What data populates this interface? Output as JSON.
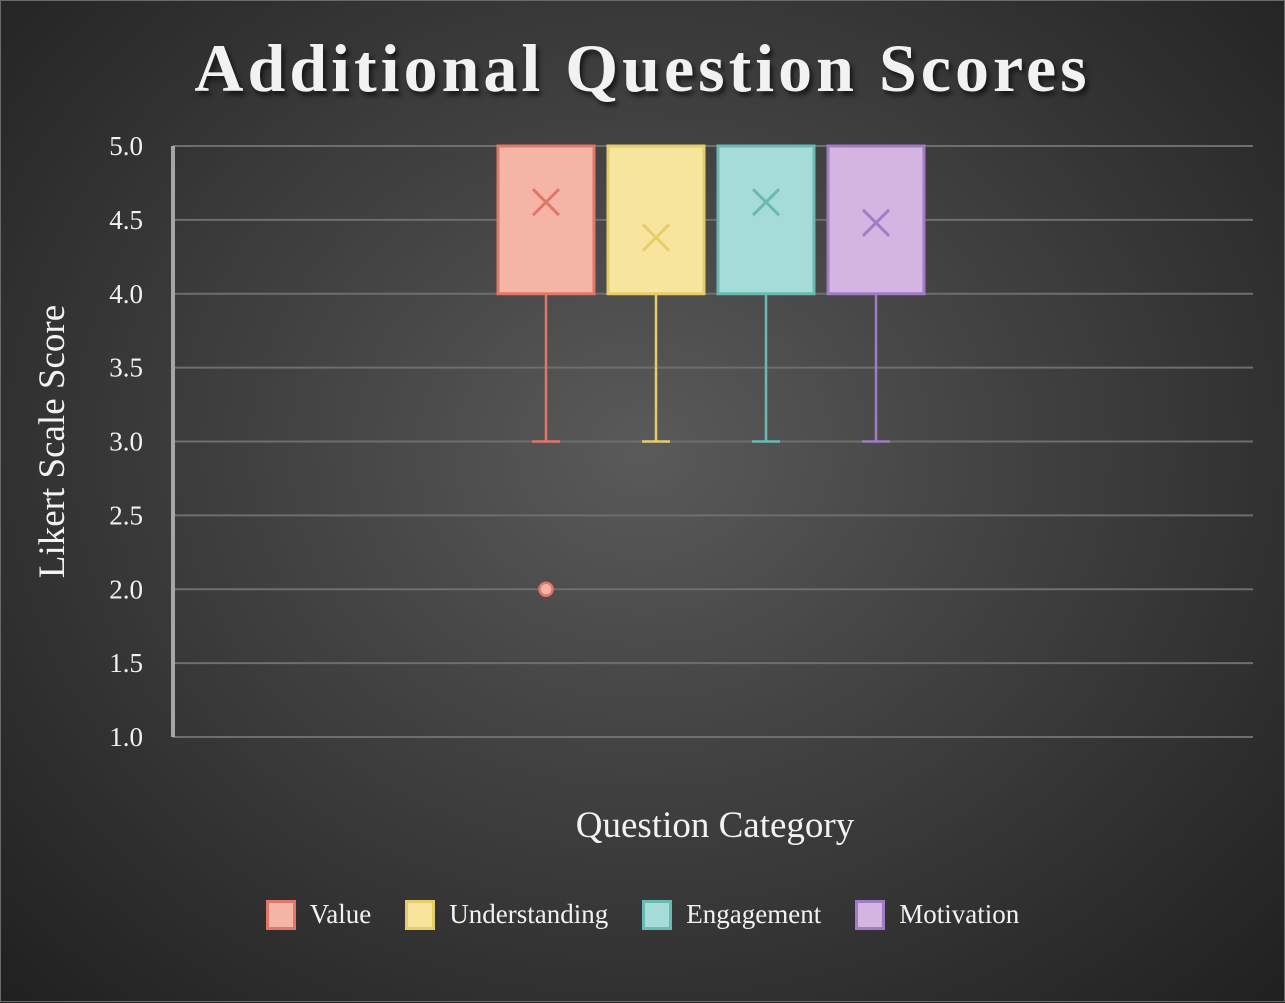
{
  "chart_data": {
    "type": "boxplot",
    "title": "Additional Question Scores",
    "xlabel": "Question Category",
    "ylabel": "Likert Scale Score",
    "ylim": [
      1.0,
      5.0
    ],
    "y_ticks": [
      "1.0",
      "1.5",
      "2.0",
      "2.5",
      "3.0",
      "3.5",
      "4.0",
      "4.5",
      "5.0"
    ],
    "y_tick_values": [
      1.0,
      1.5,
      2.0,
      2.5,
      3.0,
      3.5,
      4.0,
      4.5,
      5.0
    ],
    "grid": true,
    "legend_position": "bottom",
    "series": [
      {
        "name": "Value",
        "min": 3.0,
        "q1": 4.0,
        "median": 5.0,
        "q3": 5.0,
        "max": 5.0,
        "mean": 4.62,
        "outliers": [
          2.0
        ],
        "fill": "#f4b5a6",
        "stroke": "#e0776a"
      },
      {
        "name": "Understanding",
        "min": 3.0,
        "q1": 4.0,
        "median": 5.0,
        "q3": 5.0,
        "max": 5.0,
        "mean": 4.38,
        "outliers": [],
        "fill": "#f8e59d",
        "stroke": "#e6cd6a"
      },
      {
        "name": "Engagement",
        "min": 3.0,
        "q1": 4.0,
        "median": 5.0,
        "q3": 5.0,
        "max": 5.0,
        "mean": 4.62,
        "outliers": [],
        "fill": "#a6dcd7",
        "stroke": "#6ab9b3"
      },
      {
        "name": "Motivation",
        "min": 3.0,
        "q1": 4.0,
        "median": 5.0,
        "q3": 5.0,
        "max": 5.0,
        "mean": 4.48,
        "outliers": [],
        "fill": "#d4b5e2",
        "stroke": "#a07cc4"
      }
    ]
  }
}
